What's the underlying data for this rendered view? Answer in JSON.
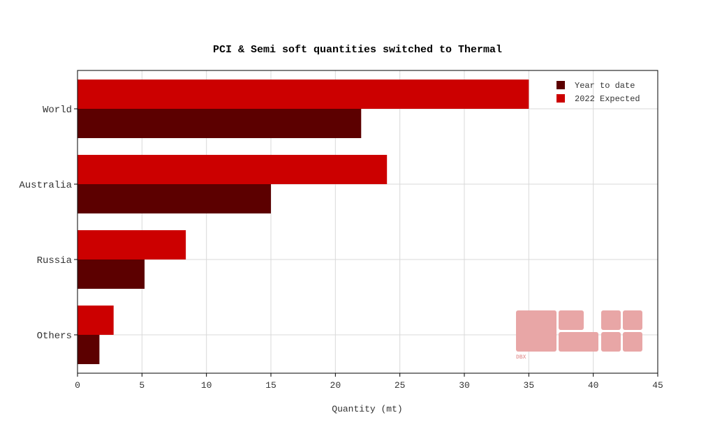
{
  "colors": {
    "year_to_date": "#5c0000",
    "expected_2022": "#cc0000",
    "grid": "#d9d9d9",
    "watermark": "#e8a6a6"
  },
  "watermark": {
    "label": "DBX"
  },
  "chart_data": {
    "type": "bar",
    "orientation": "horizontal",
    "title": "PCI & Semi soft quantities switched to Thermal",
    "xlabel": "Quantity (mt)",
    "ylabel": "",
    "categories": [
      "World",
      "Australia",
      "Russia",
      "Others"
    ],
    "series": [
      {
        "name": "Year to date",
        "values": [
          22,
          15,
          5.2,
          1.7
        ]
      },
      {
        "name": "2022 Expected",
        "values": [
          35,
          24,
          8.4,
          2.8
        ]
      }
    ],
    "xlim": [
      0,
      45
    ],
    "xticks": [
      "0",
      "5",
      "10",
      "15",
      "20",
      "25",
      "30",
      "35",
      "40",
      "45"
    ],
    "grid": true,
    "legend_position": "top-right"
  }
}
